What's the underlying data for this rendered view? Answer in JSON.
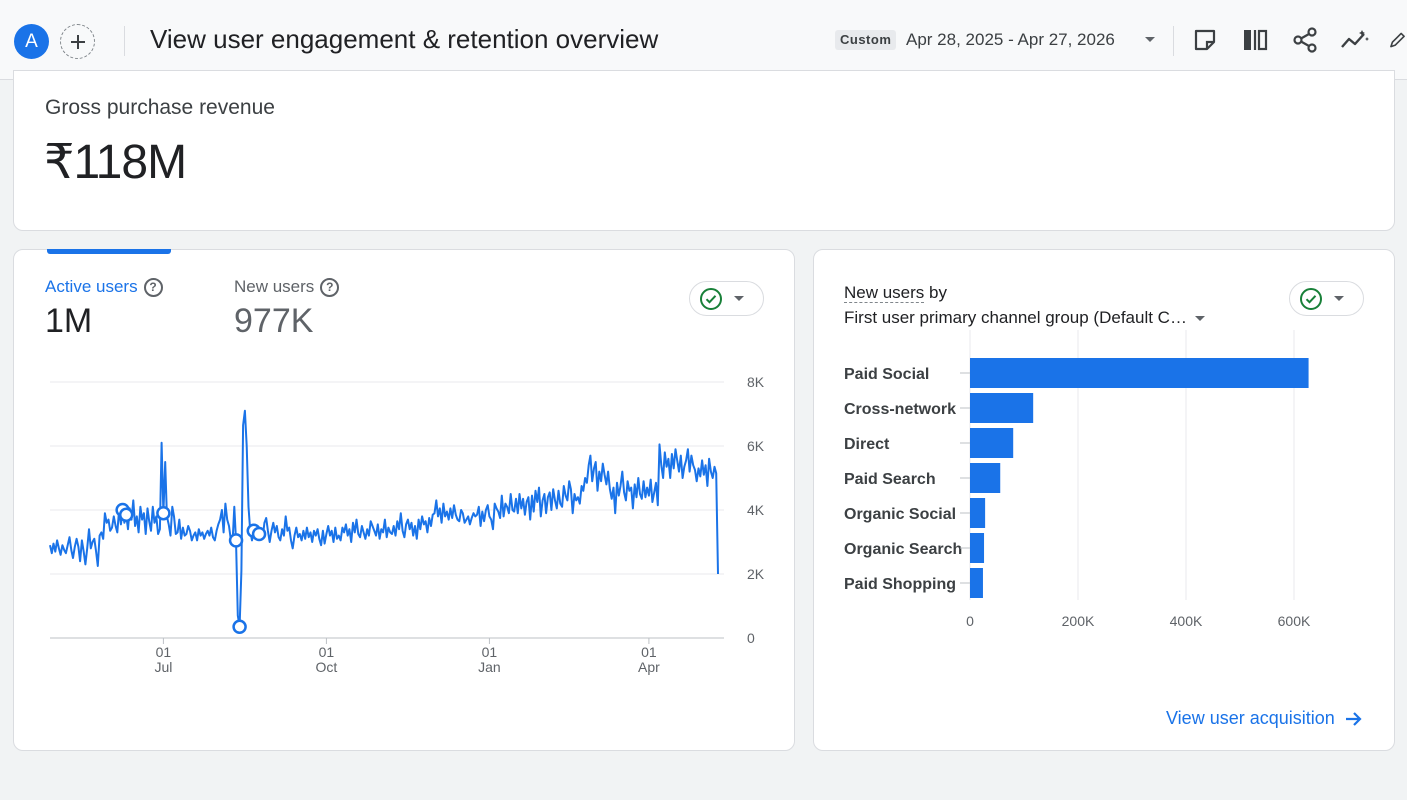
{
  "header": {
    "avatar_letter": "A",
    "title": "View user engagement & retention overview",
    "date_chip": "Custom",
    "date_range": "Apr 28, 2025 - Apr 27, 2026"
  },
  "icons": [
    "add-icon",
    "note-icon",
    "compare-icon",
    "share-icon",
    "insights-icon",
    "edit-icon",
    "help-icon",
    "check-circle-icon",
    "caret-down-icon",
    "arrow-right-icon"
  ],
  "revenue": {
    "label": "Gross purchase revenue",
    "value": "₹118M"
  },
  "engagement": {
    "active_label": "Active users",
    "active_value": "1M",
    "new_label": "New users",
    "new_value": "977K",
    "accent": "#1a73e8"
  },
  "channels": {
    "title_link": "New users",
    "title_rest": " by",
    "dimension": "First user primary channel group (Default C…",
    "link": "View user acquisition"
  },
  "chart_data": [
    {
      "type": "line",
      "series": [
        {
          "name": "Active users",
          "values": [
            2900,
            2650,
            2950,
            2700,
            3050,
            2800,
            2600,
            2900,
            2750,
            2650,
            2900,
            3150,
            2750,
            2500,
            2850,
            3100,
            2850,
            2400,
            3050,
            2700,
            2300,
            2800,
            3400,
            2800,
            3000,
            3100,
            2700,
            2250,
            3200,
            3300,
            3100,
            3900,
            3600,
            3700,
            3350,
            3450,
            3800,
            3500,
            3300,
            4000,
            3550,
            4000,
            3600,
            3850,
            3400,
            4050,
            3700,
            4300,
            3500,
            3800,
            3300,
            4100,
            3700,
            3900,
            3250,
            4050,
            3650,
            3350,
            4100,
            3600,
            3800,
            3250,
            3400,
            6100,
            3900,
            5500,
            3800,
            3550,
            3200,
            4100,
            3800,
            3250,
            3300,
            3700,
            3100,
            3450,
            3200,
            3250,
            3500,
            3350,
            3050,
            3200,
            3300,
            3050,
            3400,
            3200,
            3300,
            3100,
            3250,
            3350,
            3200,
            3450,
            3150,
            3050,
            3350,
            3550,
            3700,
            4000,
            3300,
            4200,
            3700,
            3500,
            3100,
            2950,
            4100,
            3050,
            700,
            350,
            2100,
            6650,
            7100,
            6000,
            4100,
            3350,
            3050,
            3350,
            3200,
            3500,
            3250,
            3400,
            3100,
            3600,
            3750,
            3350,
            3000,
            3350,
            3600,
            3300,
            3500,
            3150,
            3050,
            3400,
            3200,
            3800,
            3350,
            3450,
            3050,
            2800,
            3200,
            3450,
            3150,
            3250,
            3050,
            3350,
            3100,
            3450,
            3150,
            3300,
            3000,
            3350,
            3200,
            3400,
            3100,
            2900,
            3350,
            2950,
            3250,
            3500,
            3200,
            3350,
            3000,
            3450,
            3100,
            3200,
            3050,
            3450,
            3300,
            3550,
            3200,
            3400,
            3000,
            3600,
            3300,
            3700,
            3250,
            3150,
            3500,
            3300,
            3100,
            3400,
            3200,
            3650,
            3500,
            3350,
            3200,
            3550,
            3100,
            3400,
            3300,
            3700,
            3150,
            3450,
            3300,
            3250,
            3500,
            3200,
            3650,
            3400,
            3900,
            3350,
            3150,
            3550,
            3700,
            3400,
            3600,
            3200,
            3500,
            3100,
            3700,
            3400,
            3800,
            3550,
            3650,
            3300,
            3750,
            3500,
            3850,
            3900,
            4300,
            3800,
            4050,
            3600,
            4200,
            3800,
            3950,
            3700,
            4050,
            3750,
            4150,
            3850,
            3700,
            3650,
            4000,
            3900,
            3600,
            3700,
            3800,
            3550,
            3750,
            3900,
            3800,
            3850,
            4100,
            3500,
            3950,
            3650,
            4000,
            4150,
            3800,
            3700,
            3400,
            4200,
            4050,
            3950,
            3750,
            4450,
            3800,
            4200,
            4100,
            3900,
            4500,
            4000,
            3950,
            4350,
            3900,
            4500,
            4050,
            4350,
            3850,
            4250,
            4400,
            3700,
            4450,
            3950,
            4600,
            4250,
            4700,
            3800,
            4300,
            4500,
            3900,
            4400,
            4550,
            4000,
            4650,
            4300,
            4050,
            4600,
            4200,
            4100,
            4750,
            4450,
            4300,
            4900,
            4650,
            3900,
            4500,
            4300,
            4400,
            4200,
            4750,
            4600,
            5000,
            4850,
            5400,
            5700,
            4900,
            5300,
            5500,
            4600,
            5200,
            4900,
            5450,
            5100,
            4800,
            5200,
            4650,
            4350,
            4700,
            3900,
            4850,
            4450,
            4750,
            5200,
            4550,
            4300,
            4900,
            4600,
            4700,
            4050,
            4800,
            4400,
            5000,
            4500,
            4350,
            4900,
            4400,
            4700,
            4450,
            4950,
            4250,
            4550,
            4850,
            4150,
            6050,
            5400,
            5000,
            5800,
            5350,
            5600,
            5000,
            5750,
            5300,
            5900,
            5550,
            5200,
            5700,
            5000,
            5350,
            5550,
            5900,
            5200,
            5700,
            5400,
            5250,
            4900,
            5300,
            5050,
            5550,
            5100,
            5400,
            4750,
            5600,
            5200,
            5000,
            5350,
            5150,
            2000
          ]
        }
      ],
      "x_ticks": [
        {
          "day": "01",
          "month": "Jul"
        },
        {
          "day": "01",
          "month": "Oct"
        },
        {
          "day": "01",
          "month": "Jan"
        },
        {
          "day": "01",
          "month": "Apr"
        }
      ],
      "y_ticks": [
        "0",
        "2K",
        "4K",
        "6K",
        "8K"
      ],
      "ylim": [
        0,
        8000
      ],
      "grid": true
    },
    {
      "type": "bar",
      "orientation": "horizontal",
      "categories": [
        "Paid Social",
        "Cross-network",
        "Direct",
        "Paid Search",
        "Organic Social",
        "Organic Search",
        "Paid Shopping"
      ],
      "values": [
        627000,
        117000,
        80000,
        56000,
        28000,
        26000,
        24000
      ],
      "x_ticks": [
        "0",
        "200K",
        "400K",
        "600K"
      ],
      "xlim": [
        0,
        700000
      ],
      "color": "#1a73e8"
    }
  ]
}
